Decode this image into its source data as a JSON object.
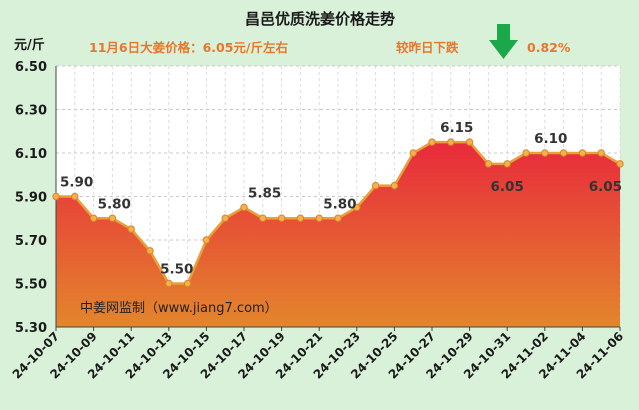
{
  "header": {
    "title": "昌邑优质洗姜价格走势",
    "unit": "元/斤",
    "price_note": "11月6日大姜价格：6.05元/斤左右",
    "change_label": "较昨日下跌",
    "change_value": "0.82%",
    "change_icon": "down-arrow-icon",
    "change_color": "#1aa84a"
  },
  "source_note": "中姜网监制（www.jiang7.com）",
  "colors": {
    "background": "#d9f1d9",
    "line": "#e8a03a",
    "fill_top": "#e82a3c",
    "fill_bottom": "#e3862c",
    "subtitle": "#e8762c"
  },
  "chart_data": {
    "type": "area",
    "title": "昌邑优质洗姜价格走势",
    "ylabel": "元/斤",
    "xlabel": "",
    "ylim": [
      5.3,
      6.5
    ],
    "yticks": [
      "5.30",
      "5.50",
      "5.70",
      "5.90",
      "6.10",
      "6.30",
      "6.50"
    ],
    "grid": true,
    "x": [
      "24-10-07",
      "24-10-08",
      "24-10-09",
      "24-10-10",
      "24-10-11",
      "24-10-12",
      "24-10-13",
      "24-10-14",
      "24-10-15",
      "24-10-16",
      "24-10-17",
      "24-10-18",
      "24-10-19",
      "24-10-20",
      "24-10-21",
      "24-10-22",
      "24-10-23",
      "24-10-24",
      "24-10-25",
      "24-10-26",
      "24-10-27",
      "24-10-28",
      "24-10-29",
      "24-10-30",
      "24-10-31",
      "24-11-01",
      "24-11-02",
      "24-11-03",
      "24-11-04",
      "24-11-05",
      "24-11-06"
    ],
    "xtick_labels": [
      "24-10-07",
      "24-10-09",
      "24-10-11",
      "24-10-13",
      "24-10-15",
      "24-10-17",
      "24-10-19",
      "24-10-21",
      "24-10-23",
      "24-10-25",
      "24-10-27",
      "24-10-29",
      "24-10-31",
      "24-11-02",
      "24-11-04",
      "24-11-06"
    ],
    "values": [
      5.9,
      5.9,
      5.8,
      5.8,
      5.75,
      5.65,
      5.5,
      5.5,
      5.7,
      5.8,
      5.85,
      5.8,
      5.8,
      5.8,
      5.8,
      5.8,
      5.85,
      5.95,
      5.95,
      6.1,
      6.15,
      6.15,
      6.15,
      6.05,
      6.05,
      6.1,
      6.1,
      6.1,
      6.1,
      6.1,
      6.05
    ],
    "data_labels": [
      {
        "x": "24-10-07",
        "text": "5.90"
      },
      {
        "x": "24-10-09",
        "text": "5.80"
      },
      {
        "x": "24-10-13",
        "text": "5.50"
      },
      {
        "x": "24-10-17",
        "text": "5.85"
      },
      {
        "x": "24-10-21",
        "text": "5.80"
      },
      {
        "x": "24-10-28",
        "text": "6.15"
      },
      {
        "x": "24-10-31",
        "text": "6.05"
      },
      {
        "x": "24-11-02",
        "text": "6.10"
      },
      {
        "x": "24-11-06",
        "text": "6.05"
      }
    ]
  }
}
